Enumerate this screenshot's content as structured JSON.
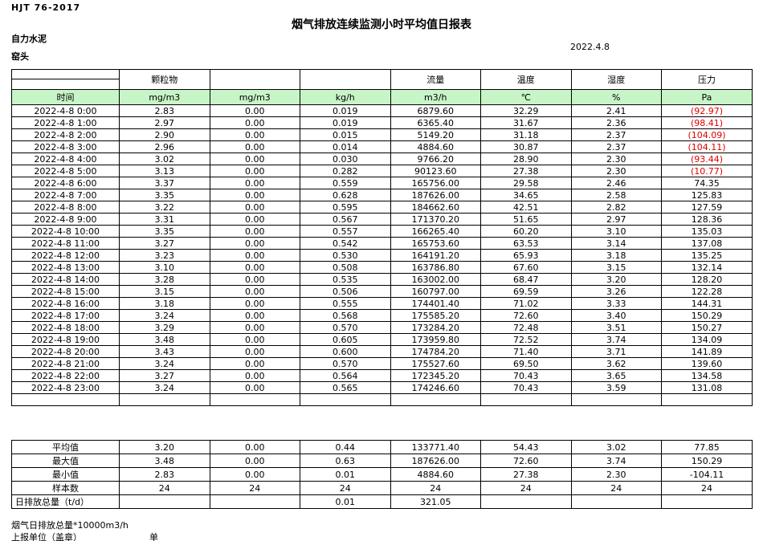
{
  "page": {
    "standard": "HJT 76-2017",
    "title": "烟气排放连续监测小时平均值日报表",
    "company": "自力水泥",
    "station": "窑头",
    "date": "2022.4.8"
  },
  "table": {
    "unit_row_bg": "#C8F5C8",
    "negative_color": "#E00000",
    "group_headers": [
      "",
      "颗粒物",
      "",
      "",
      "流量",
      "温度",
      "湿度",
      "压力"
    ],
    "unit_row": [
      "时间",
      "mg/m3",
      "mg/m3",
      "kg/h",
      "m3/h",
      "℃",
      "%",
      "Pa"
    ],
    "rows": [
      [
        "2022-4-8 0:00",
        "2.83",
        "0.00",
        "0.019",
        "6879.60",
        "32.29",
        "2.41",
        "(92.97)"
      ],
      [
        "2022-4-8 1:00",
        "2.97",
        "0.00",
        "0.019",
        "6365.40",
        "31.67",
        "2.36",
        "(98.41)"
      ],
      [
        "2022-4-8 2:00",
        "2.90",
        "0.00",
        "0.015",
        "5149.20",
        "31.18",
        "2.37",
        "(104.09)"
      ],
      [
        "2022-4-8 3:00",
        "2.96",
        "0.00",
        "0.014",
        "4884.60",
        "30.87",
        "2.37",
        "(104.11)"
      ],
      [
        "2022-4-8 4:00",
        "3.02",
        "0.00",
        "0.030",
        "9766.20",
        "28.90",
        "2.30",
        "(93.44)"
      ],
      [
        "2022-4-8 5:00",
        "3.13",
        "0.00",
        "0.282",
        "90123.60",
        "27.38",
        "2.30",
        "(10.77)"
      ],
      [
        "2022-4-8 6:00",
        "3.37",
        "0.00",
        "0.559",
        "165756.00",
        "29.58",
        "2.46",
        "74.35"
      ],
      [
        "2022-4-8 7:00",
        "3.35",
        "0.00",
        "0.628",
        "187626.00",
        "34.65",
        "2.58",
        "125.83"
      ],
      [
        "2022-4-8 8:00",
        "3.22",
        "0.00",
        "0.595",
        "184662.60",
        "42.51",
        "2.82",
        "127.59"
      ],
      [
        "2022-4-8 9:00",
        "3.31",
        "0.00",
        "0.567",
        "171370.20",
        "51.65",
        "2.97",
        "128.36"
      ],
      [
        "2022-4-8 10:00",
        "3.35",
        "0.00",
        "0.557",
        "166265.40",
        "60.20",
        "3.10",
        "135.03"
      ],
      [
        "2022-4-8 11:00",
        "3.27",
        "0.00",
        "0.542",
        "165753.60",
        "63.53",
        "3.14",
        "137.08"
      ],
      [
        "2022-4-8 12:00",
        "3.23",
        "0.00",
        "0.530",
        "164191.20",
        "65.93",
        "3.18",
        "135.25"
      ],
      [
        "2022-4-8 13:00",
        "3.10",
        "0.00",
        "0.508",
        "163786.80",
        "67.60",
        "3.15",
        "132.14"
      ],
      [
        "2022-4-8 14:00",
        "3.28",
        "0.00",
        "0.535",
        "163002.00",
        "68.47",
        "3.20",
        "128.20"
      ],
      [
        "2022-4-8 15:00",
        "3.15",
        "0.00",
        "0.506",
        "160797.00",
        "69.59",
        "3.26",
        "122.28"
      ],
      [
        "2022-4-8 16:00",
        "3.18",
        "0.00",
        "0.555",
        "174401.40",
        "71.02",
        "3.33",
        "144.31"
      ],
      [
        "2022-4-8 17:00",
        "3.24",
        "0.00",
        "0.568",
        "175585.20",
        "72.60",
        "3.40",
        "150.29"
      ],
      [
        "2022-4-8 18:00",
        "3.29",
        "0.00",
        "0.570",
        "173284.20",
        "72.48",
        "3.51",
        "150.27"
      ],
      [
        "2022-4-8 19:00",
        "3.48",
        "0.00",
        "0.605",
        "173959.80",
        "72.52",
        "3.74",
        "134.09"
      ],
      [
        "2022-4-8 20:00",
        "3.43",
        "0.00",
        "0.600",
        "174784.20",
        "71.40",
        "3.71",
        "141.89"
      ],
      [
        "2022-4-8 21:00",
        "3.24",
        "0.00",
        "0.570",
        "175527.60",
        "69.50",
        "3.62",
        "139.60"
      ],
      [
        "2022-4-8 22:00",
        "3.27",
        "0.00",
        "0.564",
        "172345.20",
        "70.43",
        "3.65",
        "134.58"
      ],
      [
        "2022-4-8 23:00",
        "3.24",
        "0.00",
        "0.565",
        "174246.60",
        "70.43",
        "3.59",
        "131.08"
      ]
    ],
    "summary": [
      {
        "label": "平均值",
        "values": [
          "3.20",
          "0.00",
          "0.44",
          "133771.40",
          "54.43",
          "3.02",
          "77.85"
        ]
      },
      {
        "label": "最大值",
        "values": [
          "3.48",
          "0.00",
          "0.63",
          "187626.00",
          "72.60",
          "3.74",
          "150.29"
        ]
      },
      {
        "label": "最小值",
        "values": [
          "2.83",
          "0.00",
          "0.01",
          "4884.60",
          "27.38",
          "2.30",
          "-104.11"
        ]
      },
      {
        "label": "样本数",
        "values": [
          "24",
          "24",
          "24",
          "24",
          "24",
          "24",
          "24"
        ]
      },
      {
        "label": "日排放总量（t/d）",
        "values": [
          "",
          "",
          "0.01",
          "321.05",
          "",
          "",
          ""
        ],
        "label_align": "left"
      }
    ]
  },
  "footer": {
    "note": "烟气日排放总量*10000m3/h",
    "report_unit": "上报单位（盖章）",
    "unit_label": "单位"
  }
}
